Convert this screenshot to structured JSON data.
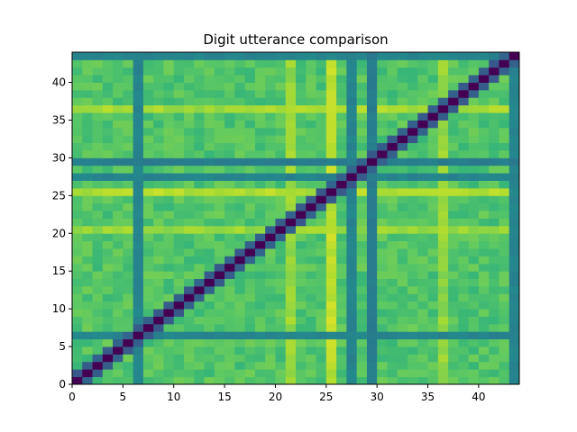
{
  "chart_data": {
    "type": "heatmap",
    "title": "Digit utterance comparison",
    "xlabel": "",
    "ylabel": "",
    "grid_size": 44,
    "xlim": [
      0,
      44
    ],
    "ylim": [
      0,
      44
    ],
    "x_ticks": [
      0,
      5,
      10,
      15,
      20,
      25,
      30,
      35,
      40
    ],
    "y_ticks": [
      0,
      5,
      10,
      15,
      20,
      25,
      30,
      35,
      40
    ],
    "colormap": "viridis",
    "value_range": [
      0,
      1
    ],
    "diagonal_value": 0.0,
    "near_diagonal_value": 0.3,
    "background_value": 0.72,
    "teal_bands": [
      {
        "index": 6,
        "value": 0.45
      },
      {
        "index": 27,
        "value": 0.45
      },
      {
        "index": 29,
        "value": 0.42
      },
      {
        "index": 43,
        "value": 0.45
      }
    ],
    "bright_rows": [
      {
        "index": 25,
        "value": 0.88
      },
      {
        "index": 36,
        "value": 0.86
      },
      {
        "index": 20,
        "value": 0.84
      }
    ],
    "bright_columns": [
      {
        "index": 25,
        "value": 0.9
      },
      {
        "index": 21,
        "value": 0.84
      },
      {
        "index": 36,
        "value": 0.83
      }
    ],
    "colors": {
      "diagonal": "#440154",
      "teal": "#21918c",
      "yellow": "#fde725"
    }
  }
}
